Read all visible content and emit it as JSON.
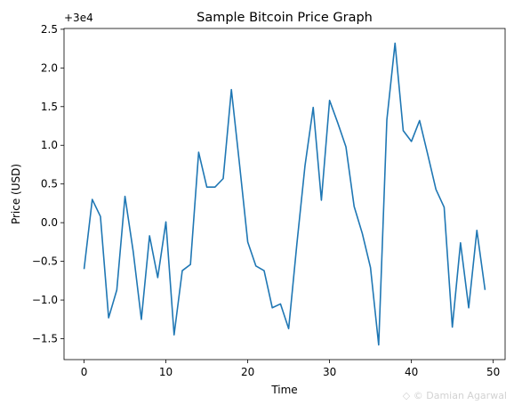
{
  "chart_data": {
    "type": "line",
    "title": "Sample Bitcoin Price Graph",
    "xlabel": "Time",
    "ylabel": "Price (USD)",
    "y_offset_label": "+3e4",
    "x": [
      0,
      1,
      2,
      3,
      4,
      5,
      6,
      7,
      8,
      9,
      10,
      11,
      12,
      13,
      14,
      15,
      16,
      17,
      18,
      19,
      20,
      21,
      22,
      23,
      24,
      25,
      26,
      27,
      28,
      29,
      30,
      31,
      32,
      33,
      34,
      35,
      36,
      37,
      38,
      39,
      40,
      41,
      42,
      43,
      44,
      45,
      46,
      47,
      48,
      49
    ],
    "series": [
      {
        "color": "#1f77b4",
        "values": [
          -0.6,
          0.3,
          0.08,
          -1.23,
          -0.87,
          0.34,
          -0.37,
          -1.25,
          -0.17,
          -0.71,
          0.01,
          -1.45,
          -0.62,
          -0.54,
          0.91,
          0.46,
          0.46,
          0.57,
          1.72,
          0.75,
          -0.25,
          -0.56,
          -0.62,
          -1.1,
          -1.05,
          -1.37,
          -0.28,
          0.74,
          1.49,
          0.29,
          1.58,
          1.29,
          0.98,
          0.21,
          -0.14,
          -0.58,
          -1.58,
          1.33,
          2.32,
          1.19,
          1.05,
          1.32,
          0.88,
          0.43,
          0.2,
          -1.35,
          -0.26,
          -1.1,
          -0.1,
          -0.87
        ]
      }
    ],
    "xlim": [
      -2.45,
      51.45
    ],
    "ylim": [
      -1.77,
      2.51
    ],
    "x_ticks": [
      0,
      10,
      20,
      30,
      40,
      50
    ],
    "x_tick_labels": [
      "0",
      "10",
      "20",
      "30",
      "40",
      "50"
    ],
    "y_ticks": [
      -1.5,
      -1.0,
      -0.5,
      0.0,
      0.5,
      1.0,
      1.5,
      2.0,
      2.5
    ],
    "y_tick_labels": [
      "−1.5",
      "−1.0",
      "−0.5",
      "0.0",
      "0.5",
      "1.0",
      "1.5",
      "2.0",
      "2.5"
    ],
    "grid": false,
    "legend": false
  },
  "watermark": {
    "text": "© Damian Agarwal"
  }
}
